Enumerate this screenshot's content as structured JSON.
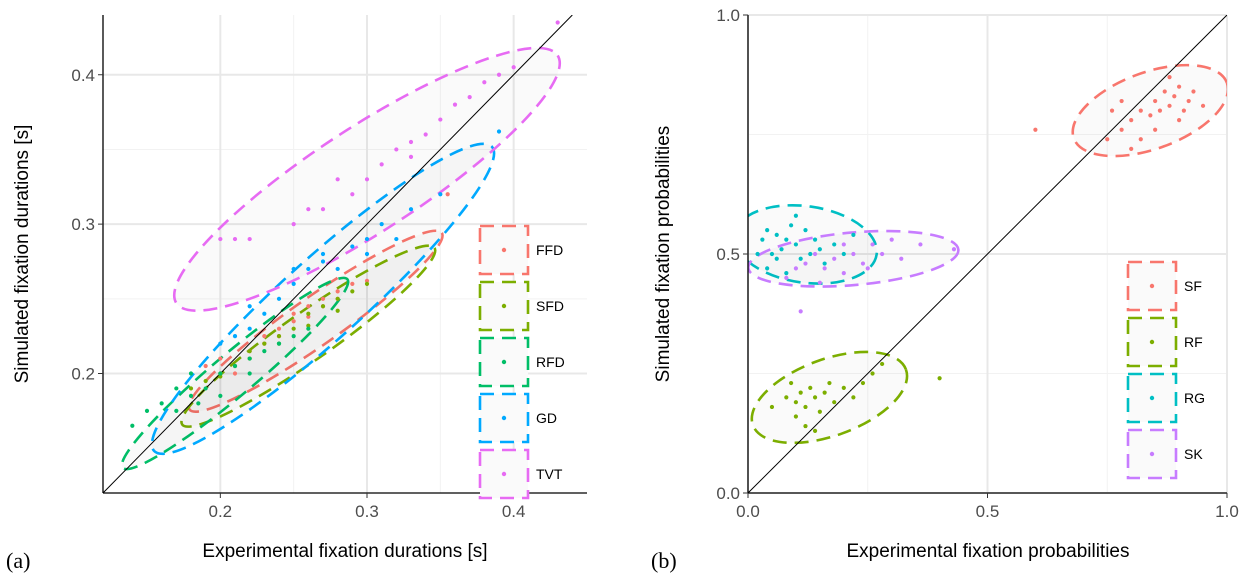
{
  "chart_data": [
    {
      "type": "scatter",
      "panel_label": "(a)",
      "title": "",
      "xlabel": "Experimental fixation durations [s]",
      "ylabel": "Simulated fixation durations [s]",
      "xlim": [
        0.12,
        0.45
      ],
      "ylim": [
        0.12,
        0.44
      ],
      "xticks": [
        0.2,
        0.3,
        0.4
      ],
      "yticks": [
        0.2,
        0.3,
        0.4
      ],
      "xtick_labels": [
        "0.2",
        "0.3",
        "0.4"
      ],
      "ytick_labels": [
        "0.2",
        "0.3",
        "0.4"
      ],
      "grid": true,
      "identity_line": true,
      "legend_position": "right",
      "series": [
        {
          "name": "FFD",
          "color": "#F8766D",
          "ellipse": {
            "cx": 0.265,
            "cy": 0.235,
            "rx": 0.105,
            "ry": 0.016,
            "angle_deg": 35
          },
          "points": [
            [
              0.19,
              0.205
            ],
            [
              0.2,
              0.21
            ],
            [
              0.21,
              0.205
            ],
            [
              0.22,
              0.215
            ],
            [
              0.23,
              0.225
            ],
            [
              0.24,
              0.23
            ],
            [
              0.25,
              0.24
            ],
            [
              0.26,
              0.245
            ],
            [
              0.27,
              0.25
            ],
            [
              0.28,
              0.255
            ],
            [
              0.29,
              0.26
            ],
            [
              0.25,
              0.235
            ],
            [
              0.23,
              0.22
            ],
            [
              0.27,
              0.245
            ],
            [
              0.3,
              0.262
            ],
            [
              0.355,
              0.32
            ],
            [
              0.24,
              0.225
            ],
            [
              0.26,
              0.238
            ],
            [
              0.21,
              0.2
            ],
            [
              0.28,
              0.25
            ]
          ]
        },
        {
          "name": "SFD",
          "color": "#7CAE00",
          "ellipse": {
            "cx": 0.26,
            "cy": 0.225,
            "rx": 0.105,
            "ry": 0.016,
            "angle_deg": 35
          },
          "points": [
            [
              0.18,
              0.19
            ],
            [
              0.19,
              0.195
            ],
            [
              0.2,
              0.2
            ],
            [
              0.21,
              0.205
            ],
            [
              0.22,
              0.21
            ],
            [
              0.23,
              0.22
            ],
            [
              0.24,
              0.225
            ],
            [
              0.25,
              0.23
            ],
            [
              0.26,
              0.24
            ],
            [
              0.27,
              0.245
            ],
            [
              0.28,
              0.25
            ],
            [
              0.29,
              0.255
            ],
            [
              0.3,
              0.26
            ],
            [
              0.22,
              0.215
            ],
            [
              0.24,
              0.22
            ],
            [
              0.26,
              0.232
            ],
            [
              0.28,
              0.242
            ],
            [
              0.2,
              0.198
            ]
          ]
        },
        {
          "name": "RFD",
          "color": "#00BE67",
          "ellipse": {
            "cx": 0.21,
            "cy": 0.2,
            "rx": 0.1,
            "ry": 0.014,
            "angle_deg": 40
          },
          "points": [
            [
              0.14,
              0.165
            ],
            [
              0.15,
              0.175
            ],
            [
              0.16,
              0.18
            ],
            [
              0.17,
              0.175
            ],
            [
              0.18,
              0.185
            ],
            [
              0.19,
              0.19
            ],
            [
              0.2,
              0.2
            ],
            [
              0.21,
              0.205
            ],
            [
              0.22,
              0.21
            ],
            [
              0.23,
              0.215
            ],
            [
              0.24,
              0.22
            ],
            [
              0.25,
              0.225
            ],
            [
              0.26,
              0.23
            ],
            [
              0.17,
              0.19
            ],
            [
              0.18,
              0.2
            ],
            [
              0.185,
              0.18
            ],
            [
              0.2,
              0.185
            ],
            [
              0.22,
              0.2
            ]
          ]
        },
        {
          "name": "GD",
          "color": "#00A9FF",
          "ellipse": {
            "cx": 0.27,
            "cy": 0.25,
            "rx": 0.155,
            "ry": 0.027,
            "angle_deg": 42
          },
          "points": [
            [
              0.2,
              0.22
            ],
            [
              0.21,
              0.225
            ],
            [
              0.22,
              0.23
            ],
            [
              0.23,
              0.24
            ],
            [
              0.24,
              0.25
            ],
            [
              0.25,
              0.26
            ],
            [
              0.26,
              0.27
            ],
            [
              0.27,
              0.275
            ],
            [
              0.28,
              0.27
            ],
            [
              0.29,
              0.285
            ],
            [
              0.3,
              0.29
            ],
            [
              0.31,
              0.3
            ],
            [
              0.33,
              0.31
            ],
            [
              0.35,
              0.32
            ],
            [
              0.39,
              0.362
            ],
            [
              0.22,
              0.245
            ],
            [
              0.25,
              0.27
            ],
            [
              0.27,
              0.28
            ],
            [
              0.3,
              0.28
            ],
            [
              0.32,
              0.29
            ]
          ]
        },
        {
          "name": "TVT",
          "color": "#E76BF3",
          "ellipse": {
            "cx": 0.3,
            "cy": 0.33,
            "rx": 0.155,
            "ry": 0.035,
            "angle_deg": 33
          },
          "points": [
            [
              0.2,
              0.29
            ],
            [
              0.21,
              0.29
            ],
            [
              0.22,
              0.29
            ],
            [
              0.25,
              0.3
            ],
            [
              0.27,
              0.31
            ],
            [
              0.28,
              0.33
            ],
            [
              0.3,
              0.33
            ],
            [
              0.32,
              0.35
            ],
            [
              0.33,
              0.345
            ],
            [
              0.34,
              0.36
            ],
            [
              0.35,
              0.37
            ],
            [
              0.37,
              0.385
            ],
            [
              0.38,
              0.395
            ],
            [
              0.39,
              0.4
            ],
            [
              0.4,
              0.405
            ],
            [
              0.43,
              0.435
            ],
            [
              0.31,
              0.34
            ],
            [
              0.33,
              0.355
            ],
            [
              0.36,
              0.38
            ],
            [
              0.26,
              0.31
            ],
            [
              0.29,
              0.32
            ]
          ]
        }
      ]
    },
    {
      "type": "scatter",
      "panel_label": "(b)",
      "title": "",
      "xlabel": "Experimental fixation probabilities",
      "ylabel": "Simulated fixation probabilities",
      "xlim": [
        0.0,
        1.0
      ],
      "ylim": [
        0.0,
        1.0
      ],
      "xticks": [
        0.0,
        0.5,
        1.0
      ],
      "yticks": [
        0.0,
        0.5,
        1.0
      ],
      "xtick_labels": [
        "0.0",
        "0.5",
        "1.0"
      ],
      "ytick_labels": [
        "0.0",
        "0.5",
        "1.0"
      ],
      "grid": true,
      "identity_line": true,
      "legend_position": "right",
      "series": [
        {
          "name": "SF",
          "color": "#F8766D",
          "ellipse": {
            "cx": 0.84,
            "cy": 0.8,
            "rx": 0.17,
            "ry": 0.08,
            "angle_deg": 20
          },
          "points": [
            [
              0.6,
              0.76
            ],
            [
              0.75,
              0.74
            ],
            [
              0.78,
              0.76
            ],
            [
              0.8,
              0.78
            ],
            [
              0.82,
              0.8
            ],
            [
              0.84,
              0.79
            ],
            [
              0.85,
              0.82
            ],
            [
              0.86,
              0.8
            ],
            [
              0.87,
              0.84
            ],
            [
              0.88,
              0.81
            ],
            [
              0.89,
              0.83
            ],
            [
              0.9,
              0.85
            ],
            [
              0.91,
              0.8
            ],
            [
              0.92,
              0.82
            ],
            [
              0.93,
              0.84
            ],
            [
              0.8,
              0.72
            ],
            [
              0.82,
              0.74
            ],
            [
              0.76,
              0.8
            ],
            [
              0.88,
              0.87
            ],
            [
              0.9,
              0.78
            ],
            [
              0.78,
              0.82
            ],
            [
              0.85,
              0.76
            ],
            [
              0.95,
              0.81
            ]
          ]
        },
        {
          "name": "RF",
          "color": "#7CAE00",
          "ellipse": {
            "cx": 0.17,
            "cy": 0.2,
            "rx": 0.17,
            "ry": 0.08,
            "angle_deg": 20
          },
          "points": [
            [
              0.05,
              0.18
            ],
            [
              0.08,
              0.2
            ],
            [
              0.1,
              0.19
            ],
            [
              0.11,
              0.21
            ],
            [
              0.12,
              0.18
            ],
            [
              0.13,
              0.22
            ],
            [
              0.14,
              0.2
            ],
            [
              0.15,
              0.17
            ],
            [
              0.16,
              0.21
            ],
            [
              0.17,
              0.23
            ],
            [
              0.18,
              0.19
            ],
            [
              0.2,
              0.22
            ],
            [
              0.22,
              0.2
            ],
            [
              0.24,
              0.23
            ],
            [
              0.26,
              0.25
            ],
            [
              0.28,
              0.27
            ],
            [
              0.4,
              0.24
            ],
            [
              0.12,
              0.14
            ],
            [
              0.14,
              0.13
            ],
            [
              0.1,
              0.16
            ],
            [
              0.09,
              0.23
            ]
          ]
        },
        {
          "name": "RG",
          "color": "#00BFC4",
          "ellipse": {
            "cx": 0.12,
            "cy": 0.52,
            "rx": 0.15,
            "ry": 0.08,
            "angle_deg": -8
          },
          "points": [
            [
              0.02,
              0.5
            ],
            [
              0.03,
              0.53
            ],
            [
              0.04,
              0.55
            ],
            [
              0.05,
              0.5
            ],
            [
              0.06,
              0.54
            ],
            [
              0.07,
              0.51
            ],
            [
              0.08,
              0.53
            ],
            [
              0.09,
              0.56
            ],
            [
              0.1,
              0.52
            ],
            [
              0.11,
              0.49
            ],
            [
              0.12,
              0.55
            ],
            [
              0.13,
              0.5
            ],
            [
              0.14,
              0.53
            ],
            [
              0.15,
              0.51
            ],
            [
              0.16,
              0.48
            ],
            [
              0.18,
              0.52
            ],
            [
              0.2,
              0.5
            ],
            [
              0.22,
              0.54
            ],
            [
              0.04,
              0.47
            ],
            [
              0.06,
              0.49
            ],
            [
              0.08,
              0.46
            ],
            [
              0.1,
              0.58
            ]
          ]
        },
        {
          "name": "SK",
          "color": "#C77CFF",
          "ellipse": {
            "cx": 0.22,
            "cy": 0.49,
            "rx": 0.22,
            "ry": 0.055,
            "angle_deg": 5
          },
          "points": [
            [
              0.08,
              0.45
            ],
            [
              0.1,
              0.47
            ],
            [
              0.12,
              0.48
            ],
            [
              0.14,
              0.5
            ],
            [
              0.16,
              0.47
            ],
            [
              0.18,
              0.49
            ],
            [
              0.2,
              0.46
            ],
            [
              0.22,
              0.5
            ],
            [
              0.24,
              0.48
            ],
            [
              0.26,
              0.52
            ],
            [
              0.28,
              0.5
            ],
            [
              0.3,
              0.53
            ],
            [
              0.32,
              0.49
            ],
            [
              0.36,
              0.52
            ],
            [
              0.43,
              0.51
            ],
            [
              0.2,
              0.52
            ],
            [
              0.15,
              0.44
            ],
            [
              0.25,
              0.47
            ],
            [
              0.11,
              0.38
            ]
          ]
        }
      ]
    }
  ]
}
